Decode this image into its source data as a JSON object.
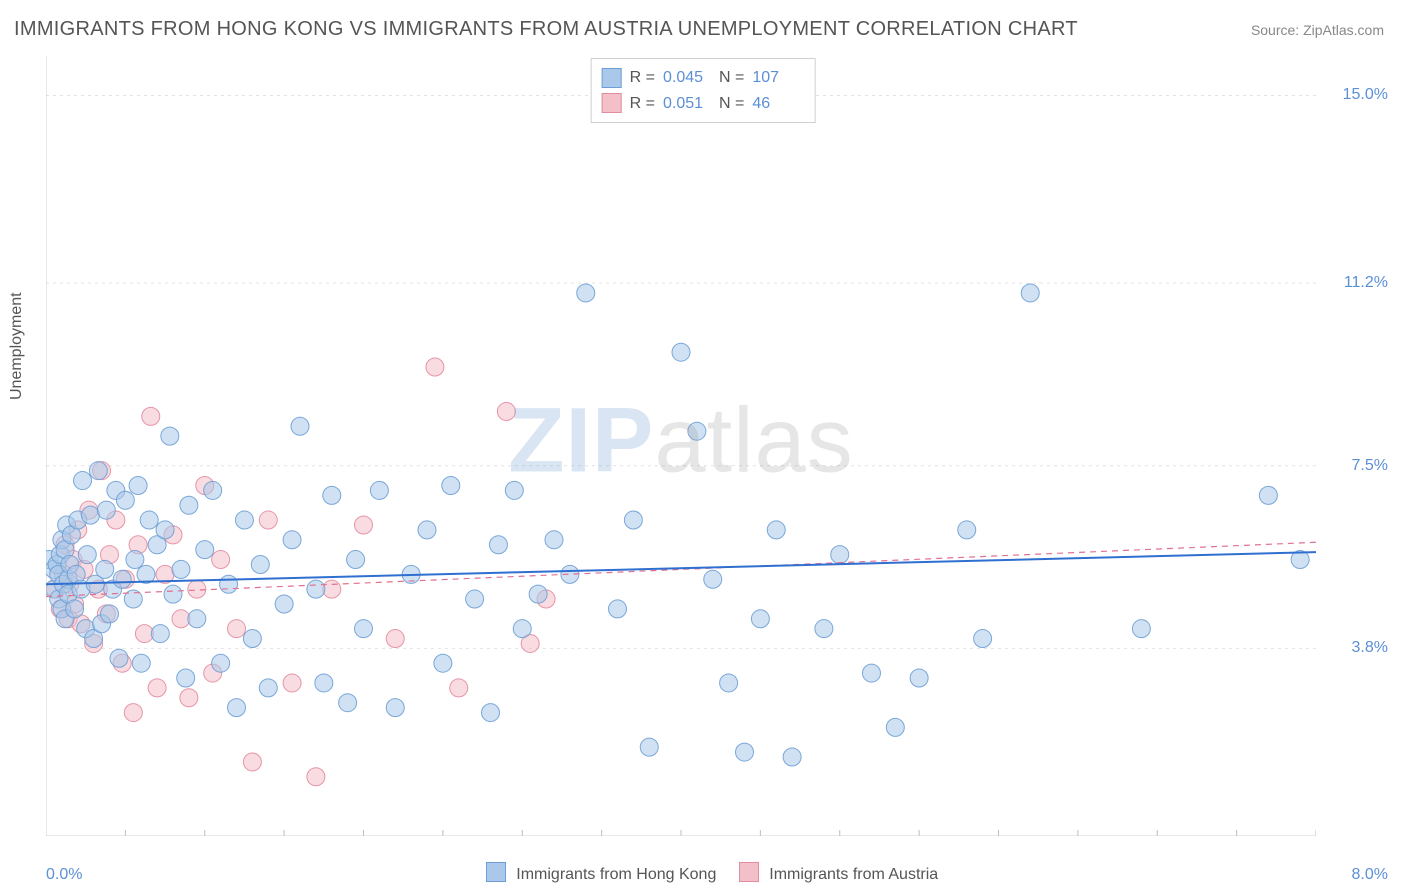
{
  "title": "IMMIGRANTS FROM HONG KONG VS IMMIGRANTS FROM AUSTRIA UNEMPLOYMENT CORRELATION CHART",
  "source_label": "Source: ZipAtlas.com",
  "ylabel": "Unemployment",
  "watermark": {
    "part1": "ZIP",
    "part2": "atlas"
  },
  "chart": {
    "type": "scatter",
    "xlim": [
      0.0,
      8.0
    ],
    "ylim": [
      0.0,
      15.8
    ],
    "x_ticks": {
      "left": "0.0%",
      "right": "8.0%"
    },
    "y_ticks": [
      {
        "value": 15.0,
        "label": "15.0%"
      },
      {
        "value": 11.2,
        "label": "11.2%"
      },
      {
        "value": 7.5,
        "label": "7.5%"
      },
      {
        "value": 3.8,
        "label": "3.8%"
      }
    ],
    "background_color": "#ffffff",
    "grid_color": "#e2e2e2",
    "axis_color": "#d0d0d0",
    "tick_mark_color": "#bdbdbd",
    "marker_radius": 9,
    "marker_opacity": 0.55,
    "marker_stroke_opacity": 0.9,
    "series": [
      {
        "id": "hongkong",
        "label": "Immigrants from Hong Kong",
        "color_fill": "#a9c8ea",
        "color_stroke": "#6e9fd4",
        "r_value": "0.045",
        "n_value": "107",
        "trend": {
          "y_at_x0": 5.1,
          "y_at_xmax": 5.75,
          "color": "#2f6fd0",
          "width": 2,
          "dash": ""
        },
        "points": [
          [
            0.02,
            5.6
          ],
          [
            0.05,
            5.4
          ],
          [
            0.05,
            5.0
          ],
          [
            0.07,
            5.5
          ],
          [
            0.08,
            4.8
          ],
          [
            0.08,
            5.3
          ],
          [
            0.09,
            5.7
          ],
          [
            0.1,
            6.0
          ],
          [
            0.1,
            4.6
          ],
          [
            0.11,
            5.1
          ],
          [
            0.12,
            5.8
          ],
          [
            0.12,
            4.4
          ],
          [
            0.13,
            6.3
          ],
          [
            0.14,
            5.2
          ],
          [
            0.14,
            4.9
          ],
          [
            0.15,
            5.5
          ],
          [
            0.16,
            6.1
          ],
          [
            0.18,
            4.6
          ],
          [
            0.19,
            5.3
          ],
          [
            0.2,
            6.4
          ],
          [
            0.22,
            5.0
          ],
          [
            0.23,
            7.2
          ],
          [
            0.25,
            4.2
          ],
          [
            0.26,
            5.7
          ],
          [
            0.28,
            6.5
          ],
          [
            0.3,
            4.0
          ],
          [
            0.31,
            5.1
          ],
          [
            0.33,
            7.4
          ],
          [
            0.35,
            4.3
          ],
          [
            0.37,
            5.4
          ],
          [
            0.38,
            6.6
          ],
          [
            0.4,
            4.5
          ],
          [
            0.42,
            5.0
          ],
          [
            0.44,
            7.0
          ],
          [
            0.46,
            3.6
          ],
          [
            0.48,
            5.2
          ],
          [
            0.5,
            6.8
          ],
          [
            0.55,
            4.8
          ],
          [
            0.56,
            5.6
          ],
          [
            0.58,
            7.1
          ],
          [
            0.6,
            3.5
          ],
          [
            0.63,
            5.3
          ],
          [
            0.65,
            6.4
          ],
          [
            0.7,
            5.9
          ],
          [
            0.72,
            4.1
          ],
          [
            0.75,
            6.2
          ],
          [
            0.78,
            8.1
          ],
          [
            0.8,
            4.9
          ],
          [
            0.85,
            5.4
          ],
          [
            0.88,
            3.2
          ],
          [
            0.9,
            6.7
          ],
          [
            0.95,
            4.4
          ],
          [
            1.0,
            5.8
          ],
          [
            1.05,
            7.0
          ],
          [
            1.1,
            3.5
          ],
          [
            1.15,
            5.1
          ],
          [
            1.2,
            2.6
          ],
          [
            1.25,
            6.4
          ],
          [
            1.3,
            4.0
          ],
          [
            1.35,
            5.5
          ],
          [
            1.4,
            3.0
          ],
          [
            1.5,
            4.7
          ],
          [
            1.55,
            6.0
          ],
          [
            1.6,
            8.3
          ],
          [
            1.7,
            5.0
          ],
          [
            1.75,
            3.1
          ],
          [
            1.8,
            6.9
          ],
          [
            1.9,
            2.7
          ],
          [
            1.95,
            5.6
          ],
          [
            2.0,
            4.2
          ],
          [
            2.1,
            7.0
          ],
          [
            2.2,
            2.6
          ],
          [
            2.3,
            5.3
          ],
          [
            2.4,
            6.2
          ],
          [
            2.5,
            3.5
          ],
          [
            2.55,
            7.1
          ],
          [
            2.7,
            4.8
          ],
          [
            2.8,
            2.5
          ],
          [
            2.85,
            5.9
          ],
          [
            2.95,
            7.0
          ],
          [
            3.0,
            4.2
          ],
          [
            3.1,
            4.9
          ],
          [
            3.2,
            6.0
          ],
          [
            3.3,
            5.3
          ],
          [
            3.4,
            11.0
          ],
          [
            3.6,
            4.6
          ],
          [
            3.7,
            6.4
          ],
          [
            3.8,
            1.8
          ],
          [
            4.0,
            9.8
          ],
          [
            4.1,
            8.2
          ],
          [
            4.2,
            5.2
          ],
          [
            4.3,
            3.1
          ],
          [
            4.4,
            1.7
          ],
          [
            4.5,
            4.4
          ],
          [
            4.6,
            6.2
          ],
          [
            4.7,
            1.6
          ],
          [
            4.9,
            4.2
          ],
          [
            5.0,
            5.7
          ],
          [
            5.2,
            3.3
          ],
          [
            5.35,
            2.2
          ],
          [
            5.5,
            3.2
          ],
          [
            5.8,
            6.2
          ],
          [
            5.9,
            4.0
          ],
          [
            6.2,
            11.0
          ],
          [
            6.9,
            4.2
          ],
          [
            7.7,
            6.9
          ],
          [
            7.9,
            5.6
          ]
        ]
      },
      {
        "id": "austria",
        "label": "Immigrants from Austria",
        "color_fill": "#f3bfc9",
        "color_stroke": "#e38ca0",
        "r_value": "0.051",
        "n_value": "46",
        "trend": {
          "y_at_x0": 4.85,
          "y_at_xmax": 5.95,
          "color": "#e17091",
          "width": 1.2,
          "dash": "6 5"
        },
        "points": [
          [
            0.06,
            5.0
          ],
          [
            0.09,
            4.6
          ],
          [
            0.11,
            5.3
          ],
          [
            0.12,
            5.9
          ],
          [
            0.14,
            4.4
          ],
          [
            0.15,
            5.1
          ],
          [
            0.17,
            5.6
          ],
          [
            0.18,
            4.7
          ],
          [
            0.2,
            6.2
          ],
          [
            0.22,
            4.3
          ],
          [
            0.24,
            5.4
          ],
          [
            0.27,
            6.6
          ],
          [
            0.3,
            3.9
          ],
          [
            0.33,
            5.0
          ],
          [
            0.35,
            7.4
          ],
          [
            0.38,
            4.5
          ],
          [
            0.4,
            5.7
          ],
          [
            0.44,
            6.4
          ],
          [
            0.48,
            3.5
          ],
          [
            0.5,
            5.2
          ],
          [
            0.55,
            2.5
          ],
          [
            0.58,
            5.9
          ],
          [
            0.62,
            4.1
          ],
          [
            0.66,
            8.5
          ],
          [
            0.7,
            3.0
          ],
          [
            0.75,
            5.3
          ],
          [
            0.8,
            6.1
          ],
          [
            0.85,
            4.4
          ],
          [
            0.9,
            2.8
          ],
          [
            0.95,
            5.0
          ],
          [
            1.0,
            7.1
          ],
          [
            1.05,
            3.3
          ],
          [
            1.1,
            5.6
          ],
          [
            1.2,
            4.2
          ],
          [
            1.3,
            1.5
          ],
          [
            1.4,
            6.4
          ],
          [
            1.55,
            3.1
          ],
          [
            1.7,
            1.2
          ],
          [
            1.8,
            5.0
          ],
          [
            2.0,
            6.3
          ],
          [
            2.2,
            4.0
          ],
          [
            2.45,
            9.5
          ],
          [
            2.6,
            3.0
          ],
          [
            2.9,
            8.6
          ],
          [
            3.05,
            3.9
          ],
          [
            3.15,
            4.8
          ]
        ]
      }
    ]
  },
  "legend": {
    "r_label": "R =",
    "n_label": "N ="
  }
}
